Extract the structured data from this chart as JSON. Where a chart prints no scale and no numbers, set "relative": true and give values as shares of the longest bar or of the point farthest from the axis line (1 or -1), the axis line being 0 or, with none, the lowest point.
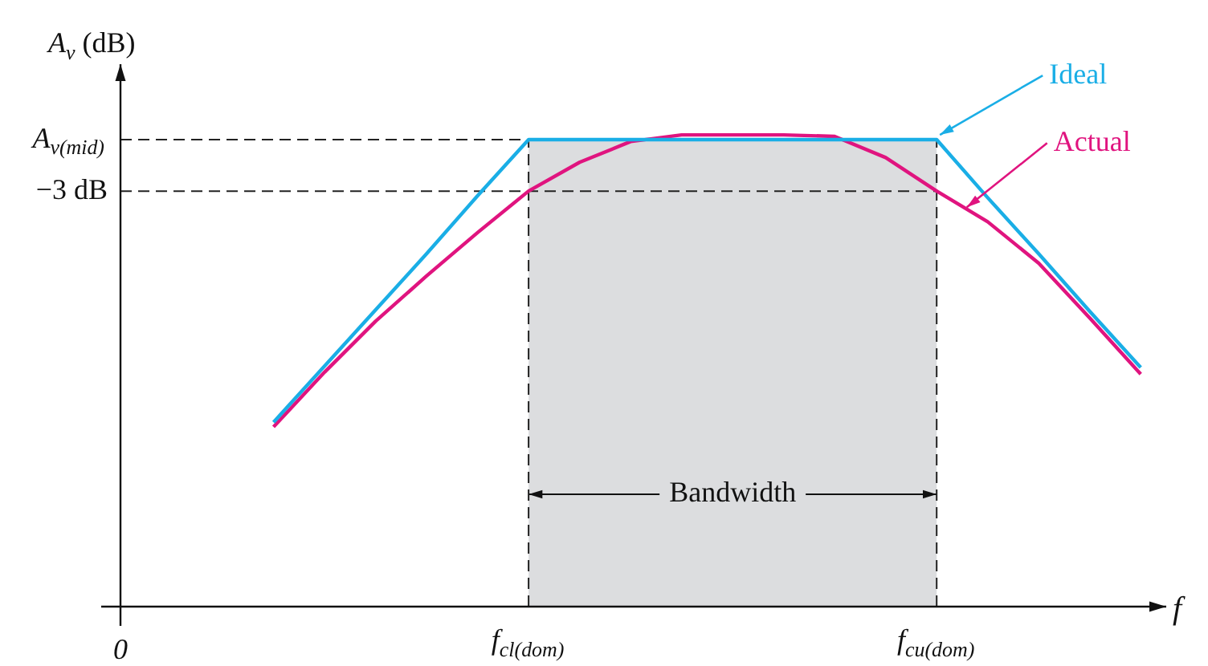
{
  "chart_data": {
    "type": "line",
    "relative": true,
    "ylabel": "A$_{v}$ (dB)",
    "xlabel": "f",
    "annotations": [
      "0"
    ],
    "legend": false,
    "categories": [
      null,
      null,
      null,
      null,
      null,
      "f$_{cl(dom)}$",
      null,
      null,
      null,
      null,
      null,
      null,
      null,
      "f$_{cu(dom)}$",
      null,
      null,
      null,
      null
    ],
    "series": [
      {
        "name": "Ideal",
        "color": "#1aaee6",
        "values": [
          0.391,
          0.51,
          0.629,
          0.748,
          0.871,
          0.99,
          0.99,
          0.99,
          0.99,
          0.99,
          0.99,
          0.99,
          0.99,
          0.99,
          0.867,
          0.748,
          0.626,
          0.507
        ]
      },
      {
        "name": "Actual",
        "color": "#e0147f",
        "values": [
          0.381,
          0.497,
          0.605,
          0.701,
          0.793,
          0.881,
          0.942,
          0.986,
          1,
          1,
          1,
          0.997,
          0.952,
          0.881,
          0.816,
          0.728,
          0.612,
          0.493
        ]
      }
    ],
    "ref_lines": [
      {
        "axis": "y",
        "value": 0.99,
        "label": "A$_{v(mid)}$",
        "line_style": "dashed"
      },
      {
        "axis": "y",
        "value": 0.881,
        "label": "−3 dB",
        "line_style": "dashed"
      },
      {
        "axis": "x",
        "value": "f$_{cl(dom)}$",
        "line_style": "dashed"
      },
      {
        "axis": "x",
        "value": "f$_{cu(dom)}$",
        "line_style": "dashed"
      }
    ],
    "bands": [
      {
        "axis": "x",
        "from": "f$_{cl(dom)}$",
        "to": "f$_{cu(dom)}$",
        "label": "Bandwidth",
        "color": "#dcdddf"
      }
    ]
  }
}
